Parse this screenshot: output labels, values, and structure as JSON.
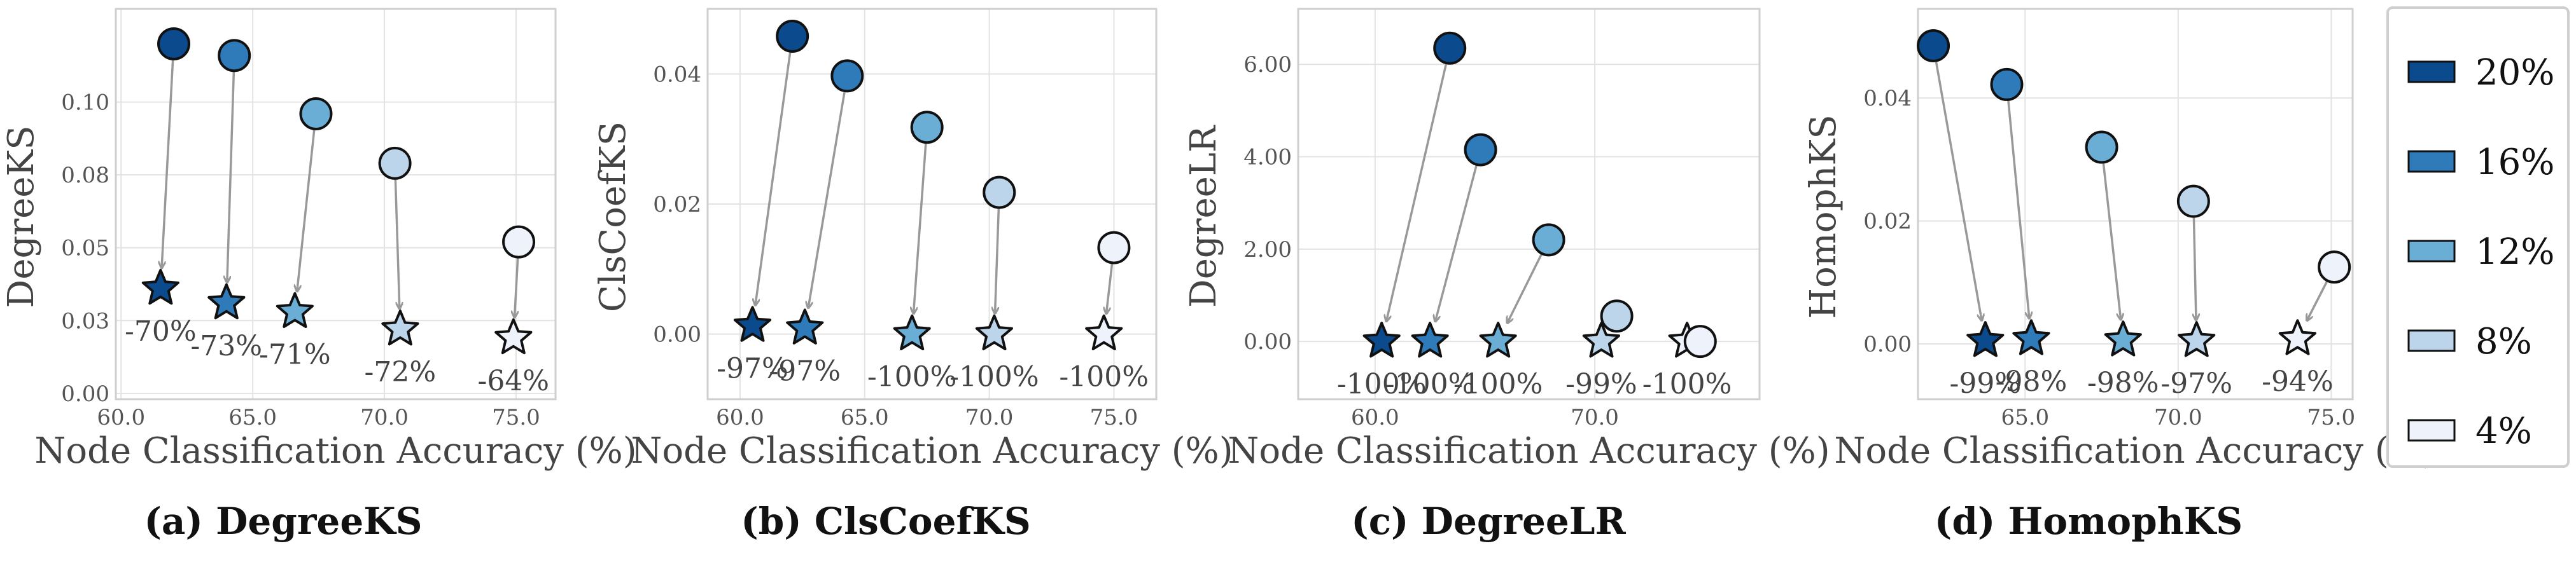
{
  "legend": {
    "entries": [
      {
        "label": "20%",
        "color": "#0b4a8c"
      },
      {
        "label": "16%",
        "color": "#2f7ab9"
      },
      {
        "label": "12%",
        "color": "#6aaed6"
      },
      {
        "label": "8%",
        "color": "#bcd5ea"
      },
      {
        "label": "4%",
        "color": "#eef3fb"
      }
    ]
  },
  "chart_data": [
    {
      "type": "scatter",
      "caption": "(a) DegreeKS",
      "ylabel": "DegreeKS",
      "xlabel": "Node Classification Accuracy (%)",
      "xlim": [
        59.8,
        76.5
      ],
      "ylim": [
        -0.002,
        0.132
      ],
      "xticks": [
        60.0,
        65.0,
        70.0,
        75.0
      ],
      "xtick_labels": [
        "60.0",
        "65.0",
        "70.0",
        "75.0"
      ],
      "yticks": [
        0.0,
        0.025,
        0.05,
        0.075,
        0.1
      ],
      "ytick_labels": [
        "0.00",
        "0.03",
        "0.05",
        "0.08",
        "0.10"
      ],
      "series": [
        {
          "name": "20%",
          "before": [
            62.0,
            0.12
          ],
          "after": [
            61.5,
            0.036
          ],
          "reduction": "-70%"
        },
        {
          "name": "16%",
          "before": [
            64.3,
            0.116
          ],
          "after": [
            64.0,
            0.031
          ],
          "reduction": "-73%"
        },
        {
          "name": "12%",
          "before": [
            67.4,
            0.096
          ],
          "after": [
            66.6,
            0.028
          ],
          "reduction": "-71%"
        },
        {
          "name": "8%",
          "before": [
            70.4,
            0.079
          ],
          "after": [
            70.6,
            0.022
          ],
          "reduction": "-72%"
        },
        {
          "name": "4%",
          "before": [
            75.1,
            0.052
          ],
          "after": [
            74.9,
            0.019
          ],
          "reduction": "-64%"
        }
      ]
    },
    {
      "type": "scatter",
      "caption": "(b) ClsCoefKS",
      "ylabel": "ClsCoefKS",
      "xlabel": "Node Classification Accuracy (%)",
      "xlim": [
        58.7,
        76.7
      ],
      "ylim": [
        -0.01,
        0.05
      ],
      "xticks": [
        60.0,
        65.0,
        70.0,
        75.0
      ],
      "xtick_labels": [
        "60.0",
        "65.0",
        "70.0",
        "75.0"
      ],
      "yticks": [
        0.0,
        0.02,
        0.04
      ],
      "ytick_labels": [
        "0.00",
        "0.02",
        "0.04"
      ],
      "series": [
        {
          "name": "20%",
          "before": [
            62.1,
            0.0458
          ],
          "after": [
            60.5,
            0.0013
          ],
          "reduction": "-97%"
        },
        {
          "name": "16%",
          "before": [
            64.3,
            0.0397
          ],
          "after": [
            62.6,
            0.0009
          ],
          "reduction": "-97%"
        },
        {
          "name": "12%",
          "before": [
            67.5,
            0.0318
          ],
          "after": [
            66.9,
            0.0
          ],
          "reduction": "-100%"
        },
        {
          "name": "8%",
          "before": [
            70.4,
            0.0218
          ],
          "after": [
            70.2,
            0.0
          ],
          "reduction": "-100%"
        },
        {
          "name": "4%",
          "before": [
            75.0,
            0.0133
          ],
          "after": [
            74.6,
            0.0
          ],
          "reduction": "-100%"
        }
      ]
    },
    {
      "type": "scatter",
      "caption": "(c) DegreeLR",
      "ylabel": "DegreeLR",
      "xlabel": "Node Classification Accuracy (%)",
      "xlim": [
        56.5,
        77.5
      ],
      "ylim": [
        -1.25,
        7.2
      ],
      "xticks": [
        60.0,
        70.0
      ],
      "xtick_labels": [
        "60.0",
        "70.0"
      ],
      "yticks": [
        0.0,
        2.0,
        4.0,
        6.0
      ],
      "ytick_labels": [
        "0.00",
        "2.00",
        "4.00",
        "6.00"
      ],
      "series": [
        {
          "name": "20%",
          "before": [
            63.4,
            6.35
          ],
          "after": [
            60.3,
            0.0
          ],
          "reduction": "-100%"
        },
        {
          "name": "16%",
          "before": [
            64.8,
            4.15
          ],
          "after": [
            62.5,
            0.0
          ],
          "reduction": "-100%"
        },
        {
          "name": "12%",
          "before": [
            67.9,
            2.2
          ],
          "after": [
            65.6,
            0.0
          ],
          "reduction": "-100%"
        },
        {
          "name": "8%",
          "before": [
            71.0,
            0.55
          ],
          "after": [
            70.3,
            0.0
          ],
          "reduction": "-99%"
        },
        {
          "name": "4%",
          "before": [
            74.8,
            0.0
          ],
          "after": [
            74.2,
            0.0
          ],
          "reduction": "-100%"
        }
      ]
    },
    {
      "type": "scatter",
      "caption": "(d) HomophKS",
      "ylabel": "HomophKS",
      "xlabel": "Node Classification Accuracy (%)",
      "xlim": [
        61.5,
        75.7
      ],
      "ylim": [
        -0.009,
        0.0545
      ],
      "xticks": [
        65.0,
        70.0,
        75.0
      ],
      "xtick_labels": [
        "65.0",
        "70.0",
        "75.0"
      ],
      "yticks": [
        0.0,
        0.02,
        0.04
      ],
      "ytick_labels": [
        "0.00",
        "0.02",
        "0.04"
      ],
      "series": [
        {
          "name": "20%",
          "before": [
            62.0,
            0.0485
          ],
          "after": [
            63.7,
            0.0005
          ],
          "reduction": "-99%"
        },
        {
          "name": "16%",
          "before": [
            64.4,
            0.0422
          ],
          "after": [
            65.2,
            0.0008
          ],
          "reduction": "-98%"
        },
        {
          "name": "12%",
          "before": [
            67.5,
            0.032
          ],
          "after": [
            68.2,
            0.0006
          ],
          "reduction": "-98%"
        },
        {
          "name": "8%",
          "before": [
            70.5,
            0.0232
          ],
          "after": [
            70.6,
            0.0005
          ],
          "reduction": "-97%"
        },
        {
          "name": "4%",
          "before": [
            75.1,
            0.0125
          ],
          "after": [
            73.9,
            0.0008
          ],
          "reduction": "-94%"
        }
      ]
    }
  ]
}
